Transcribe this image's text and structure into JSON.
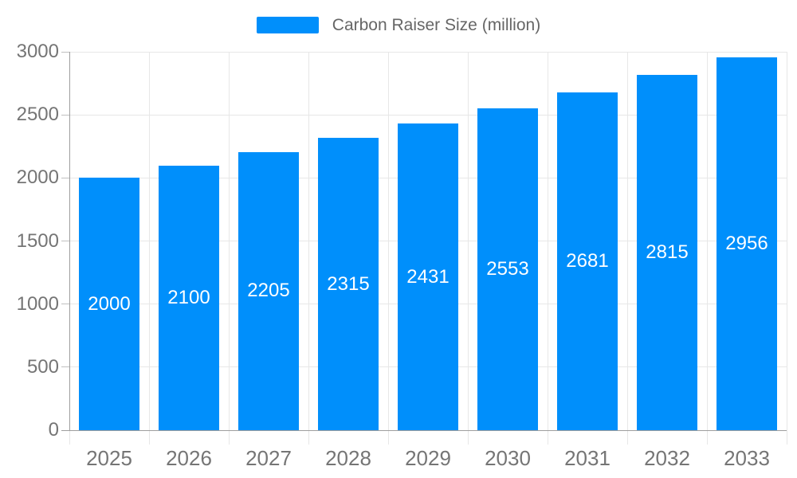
{
  "legend": {
    "label": "Carbon Raiser Size (million)"
  },
  "colors": {
    "bar": "#008FFB",
    "grid": "#e7e7e7",
    "axis": "#9e9e9e",
    "tick": "#c0c0c0",
    "axis_label": "#757575",
    "legend_text": "#666666",
    "bar_label": "#ffffff",
    "background": "#ffffff"
  },
  "chart_data": {
    "type": "bar",
    "title": "Carbon Raiser Size (million)",
    "categories": [
      "2025",
      "2026",
      "2027",
      "2028",
      "2029",
      "2030",
      "2031",
      "2032",
      "2033"
    ],
    "series": [
      {
        "name": "Carbon Raiser Size (million)",
        "values": [
          2000,
          2100,
          2205,
          2315,
          2431,
          2553,
          2681,
          2815,
          2956
        ]
      }
    ],
    "xlabel": "",
    "ylabel": "",
    "ylim": [
      0,
      3000
    ],
    "yticks": [
      0,
      500,
      1000,
      1500,
      2000,
      2500,
      3000
    ],
    "grid": true,
    "legend_position": "top",
    "bar_value_labels": true
  }
}
